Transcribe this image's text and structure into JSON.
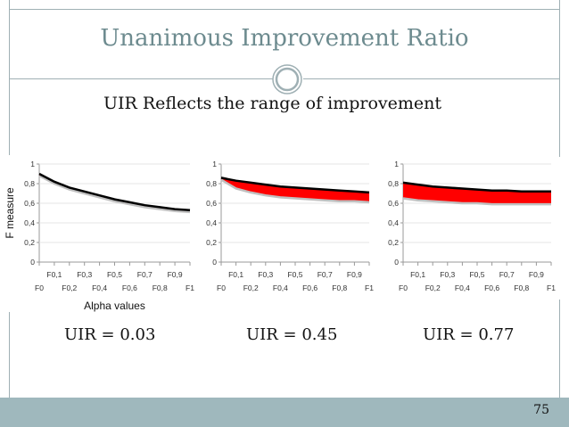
{
  "slide": {
    "title": "Unanimous Improvement Ratio",
    "subtitle": "UIR Reflects the range of improvement",
    "page_number": "75",
    "uir_labels": [
      "UIR = 0.03",
      "UIR = 0.45",
      "UIR = 0.77"
    ]
  },
  "colors": {
    "title": "#6d8b8f",
    "frame": "#9fb0b4",
    "bottom_bar": "#9fb8bd",
    "band_fill": "#ff0000",
    "upper_line": "#000000",
    "lower_line": "#c0c0c0"
  },
  "chart_data": [
    {
      "type": "area",
      "title": "",
      "xlabel": "Alpha values",
      "ylabel": "F measure",
      "ylim": [
        0,
        1
      ],
      "y_ticks": [
        "0",
        "0,2",
        "0,4",
        "0,6",
        "0,8",
        "1"
      ],
      "x_tick_labels_row1": [
        "F0,1",
        "F0,3",
        "F0,5",
        "F0,7",
        "F0,9"
      ],
      "x_tick_labels_row2": [
        "F0",
        "F0,2",
        "F0,4",
        "F0,6",
        "F0,8",
        "F1"
      ],
      "x": [
        0,
        0.1,
        0.2,
        0.3,
        0.4,
        0.5,
        0.6,
        0.7,
        0.8,
        0.9,
        1.0
      ],
      "series": [
        {
          "values": [
            0.9,
            0.82,
            0.76,
            0.72,
            0.68,
            0.64,
            0.61,
            0.58,
            0.56,
            0.54,
            0.53
          ]
        },
        {
          "values": [
            0.88,
            0.8,
            0.74,
            0.7,
            0.66,
            0.62,
            0.59,
            0.56,
            0.54,
            0.52,
            0.51
          ]
        }
      ]
    },
    {
      "type": "area",
      "title": "",
      "xlabel": "",
      "ylabel": "",
      "ylim": [
        0,
        1
      ],
      "y_ticks": [
        "0",
        "0,2",
        "0,4",
        "0,6",
        "0,8",
        "1"
      ],
      "x_tick_labels_row1": [
        "F0,1",
        "F0,3",
        "F0,5",
        "F0,7",
        "F0,9"
      ],
      "x_tick_labels_row2": [
        "F0",
        "F0,2",
        "F0,4",
        "F0,6",
        "F0,8",
        "F1"
      ],
      "x": [
        0,
        0.1,
        0.2,
        0.3,
        0.4,
        0.5,
        0.6,
        0.7,
        0.8,
        0.9,
        1.0
      ],
      "series": [
        {
          "values": [
            0.86,
            0.83,
            0.81,
            0.79,
            0.77,
            0.76,
            0.75,
            0.74,
            0.73,
            0.72,
            0.71
          ]
        },
        {
          "values": [
            0.84,
            0.75,
            0.71,
            0.68,
            0.66,
            0.65,
            0.64,
            0.63,
            0.62,
            0.62,
            0.61
          ]
        }
      ]
    },
    {
      "type": "area",
      "title": "",
      "xlabel": "",
      "ylabel": "",
      "ylim": [
        0,
        1
      ],
      "y_ticks": [
        "0",
        "0,2",
        "0,4",
        "0,6",
        "0,8",
        "1"
      ],
      "x_tick_labels_row1": [
        "F0,1",
        "F0,3",
        "F0,5",
        "F0,7",
        "F0,9"
      ],
      "x_tick_labels_row2": [
        "F0",
        "F0,2",
        "F0,4",
        "F0,6",
        "F0,8",
        "F1"
      ],
      "x": [
        0,
        0.1,
        0.2,
        0.3,
        0.4,
        0.5,
        0.6,
        0.7,
        0.8,
        0.9,
        1.0
      ],
      "series": [
        {
          "values": [
            0.81,
            0.79,
            0.77,
            0.76,
            0.75,
            0.74,
            0.73,
            0.73,
            0.72,
            0.72,
            0.72
          ]
        },
        {
          "values": [
            0.65,
            0.63,
            0.62,
            0.61,
            0.6,
            0.6,
            0.59,
            0.59,
            0.59,
            0.59,
            0.59
          ]
        }
      ]
    }
  ]
}
